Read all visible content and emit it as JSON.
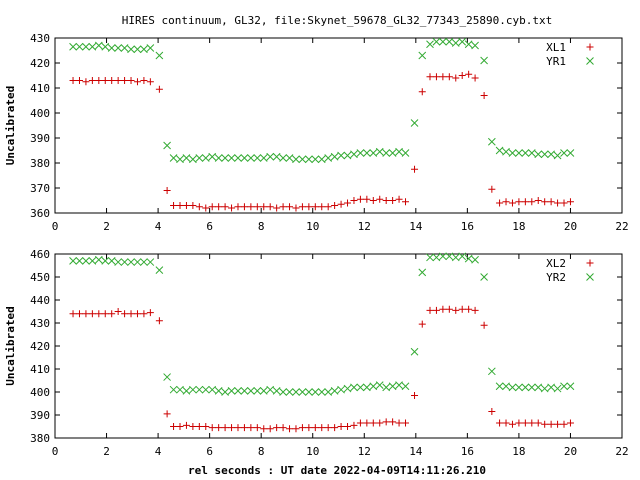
{
  "title": "HIRES continuum, GL32, file:Skynet_59678_GL32_77343_25890.cyb.txt",
  "xlabel": "rel seconds : UT date 2022-04-09T14:11:26.210",
  "colors": {
    "red": "#cc0000",
    "green": "#33aa33"
  },
  "chart_data": [
    {
      "type": "scatter",
      "ylabel": "Uncalibrated",
      "xlim": [
        0,
        22
      ],
      "ylim": [
        360,
        430
      ],
      "xticks": [
        0,
        2,
        4,
        6,
        8,
        10,
        12,
        14,
        16,
        18,
        20,
        22
      ],
      "yticks": [
        360,
        370,
        380,
        390,
        400,
        410,
        420,
        430
      ],
      "legend": "top-right",
      "series": [
        {
          "name": "XL1",
          "marker": "plus",
          "color": "#cc0000",
          "x": [
            0.7,
            0.95,
            1.2,
            1.45,
            1.7,
            1.95,
            2.2,
            2.45,
            2.7,
            2.95,
            3.2,
            3.45,
            3.7,
            4.05,
            4.35,
            4.6,
            4.85,
            5.1,
            5.35,
            5.6,
            5.85,
            6.1,
            6.35,
            6.6,
            6.85,
            7.1,
            7.35,
            7.6,
            7.85,
            8.1,
            8.35,
            8.6,
            8.85,
            9.1,
            9.35,
            9.6,
            9.85,
            10.1,
            10.35,
            10.6,
            10.85,
            11.1,
            11.35,
            11.6,
            11.85,
            12.1,
            12.35,
            12.6,
            12.85,
            13.1,
            13.35,
            13.6,
            13.95,
            14.25,
            14.55,
            14.8,
            15.05,
            15.3,
            15.55,
            15.8,
            16.05,
            16.3,
            16.65,
            16.95,
            17.25,
            17.5,
            17.75,
            18.0,
            18.25,
            18.5,
            18.75,
            19.0,
            19.25,
            19.5,
            19.75,
            20.0
          ],
          "y": [
            413,
            413,
            412.5,
            413,
            413,
            413,
            413,
            413,
            413,
            413,
            412.5,
            413,
            412.5,
            409.5,
            369,
            363,
            363,
            363,
            363,
            362.5,
            362,
            362.5,
            362.5,
            362.5,
            362,
            362.5,
            362.5,
            362.5,
            362.5,
            362.5,
            362.5,
            362,
            362.5,
            362.5,
            362,
            362.5,
            362.5,
            362.5,
            362.5,
            362.5,
            363,
            363.5,
            364,
            365,
            365.5,
            365.5,
            365,
            365.5,
            365,
            365,
            365.5,
            364.5,
            377.5,
            408.5,
            414.5,
            414.5,
            414.5,
            414.5,
            414,
            415,
            415.5,
            414,
            407,
            369.5,
            364,
            364.5,
            364,
            364.5,
            364.5,
            364.5,
            365,
            364.5,
            364.5,
            364,
            364,
            364.5
          ]
        },
        {
          "name": "YR1",
          "marker": "cross",
          "color": "#33aa33",
          "x": [
            0.7,
            0.95,
            1.2,
            1.45,
            1.7,
            1.95,
            2.2,
            2.45,
            2.7,
            2.95,
            3.2,
            3.45,
            3.7,
            4.05,
            4.35,
            4.6,
            4.85,
            5.1,
            5.35,
            5.6,
            5.85,
            6.1,
            6.35,
            6.6,
            6.85,
            7.1,
            7.35,
            7.6,
            7.85,
            8.1,
            8.35,
            8.6,
            8.85,
            9.1,
            9.35,
            9.6,
            9.85,
            10.1,
            10.35,
            10.6,
            10.85,
            11.1,
            11.35,
            11.6,
            11.85,
            12.1,
            12.35,
            12.6,
            12.85,
            13.1,
            13.35,
            13.6,
            13.95,
            14.25,
            14.55,
            14.8,
            15.05,
            15.3,
            15.55,
            15.8,
            16.05,
            16.3,
            16.65,
            16.95,
            17.25,
            17.5,
            17.75,
            18.0,
            18.25,
            18.5,
            18.75,
            19.0,
            19.25,
            19.5,
            19.75,
            20.0
          ],
          "y": [
            426.5,
            426.5,
            426.5,
            426.5,
            427,
            426.5,
            426,
            426,
            426,
            425.5,
            425.5,
            425.5,
            426,
            423,
            387,
            382,
            381.5,
            382,
            381.5,
            382,
            382,
            382.5,
            382,
            382,
            382,
            382,
            382,
            382,
            382,
            382,
            382.5,
            382.5,
            382,
            382,
            381.5,
            381.5,
            381.5,
            381.5,
            381.5,
            382,
            382.5,
            383,
            383,
            383.5,
            384,
            384,
            384,
            384.5,
            384,
            384,
            384.5,
            384,
            396,
            423,
            427.5,
            428.5,
            428.5,
            428.5,
            428,
            428.5,
            427.5,
            427,
            421,
            388.5,
            385,
            384.5,
            384,
            384,
            384,
            384,
            383.5,
            383.5,
            383.5,
            383,
            384,
            384
          ]
        }
      ]
    },
    {
      "type": "scatter",
      "ylabel": "Uncalibrated",
      "xlim": [
        0,
        22
      ],
      "ylim": [
        380,
        460
      ],
      "xticks": [
        0,
        2,
        4,
        6,
        8,
        10,
        12,
        14,
        16,
        18,
        20,
        22
      ],
      "yticks": [
        380,
        390,
        400,
        410,
        420,
        430,
        440,
        450,
        460
      ],
      "legend": "top-right",
      "series": [
        {
          "name": "XL2",
          "marker": "plus",
          "color": "#cc0000",
          "x": [
            0.7,
            0.95,
            1.2,
            1.45,
            1.7,
            1.95,
            2.2,
            2.45,
            2.7,
            2.95,
            3.2,
            3.45,
            3.7,
            4.05,
            4.35,
            4.6,
            4.85,
            5.1,
            5.35,
            5.6,
            5.85,
            6.1,
            6.35,
            6.6,
            6.85,
            7.1,
            7.35,
            7.6,
            7.85,
            8.1,
            8.35,
            8.6,
            8.85,
            9.1,
            9.35,
            9.6,
            9.85,
            10.1,
            10.35,
            10.6,
            10.85,
            11.1,
            11.35,
            11.6,
            11.85,
            12.1,
            12.35,
            12.6,
            12.85,
            13.1,
            13.35,
            13.6,
            13.95,
            14.25,
            14.55,
            14.8,
            15.05,
            15.3,
            15.55,
            15.8,
            16.05,
            16.3,
            16.65,
            16.95,
            17.25,
            17.5,
            17.75,
            18.0,
            18.25,
            18.5,
            18.75,
            19.0,
            19.25,
            19.5,
            19.75,
            20.0
          ],
          "y": [
            434,
            434,
            434,
            434,
            434,
            434,
            434,
            435,
            434,
            434,
            434,
            434,
            434.5,
            431,
            390.5,
            385,
            385,
            385.5,
            385,
            385,
            385,
            384.5,
            384.5,
            384.5,
            384.5,
            384.5,
            384.5,
            384.5,
            384.5,
            384,
            384,
            384.5,
            384.5,
            384,
            384,
            384.5,
            384.5,
            384.5,
            384.5,
            384.5,
            384.5,
            385,
            385,
            385.5,
            386.5,
            386.5,
            386.5,
            386.5,
            387,
            387,
            386.5,
            386.5,
            398.5,
            429.5,
            435.5,
            435.5,
            436,
            436,
            435.5,
            436,
            436,
            435.5,
            429,
            391.5,
            386.5,
            386.5,
            386,
            386.5,
            386.5,
            386.5,
            386.5,
            386,
            386,
            386,
            386,
            386.5
          ]
        },
        {
          "name": "YR2",
          "marker": "cross",
          "color": "#33aa33",
          "x": [
            0.7,
            0.95,
            1.2,
            1.45,
            1.7,
            1.95,
            2.2,
            2.45,
            2.7,
            2.95,
            3.2,
            3.45,
            3.7,
            4.05,
            4.35,
            4.6,
            4.85,
            5.1,
            5.35,
            5.6,
            5.85,
            6.1,
            6.35,
            6.6,
            6.85,
            7.1,
            7.35,
            7.6,
            7.85,
            8.1,
            8.35,
            8.6,
            8.85,
            9.1,
            9.35,
            9.6,
            9.85,
            10.1,
            10.35,
            10.6,
            10.85,
            11.1,
            11.35,
            11.6,
            11.85,
            12.1,
            12.35,
            12.6,
            12.85,
            13.1,
            13.35,
            13.6,
            13.95,
            14.25,
            14.55,
            14.8,
            15.05,
            15.3,
            15.55,
            15.8,
            16.05,
            16.3,
            16.65,
            16.95,
            17.25,
            17.5,
            17.75,
            18.0,
            18.25,
            18.5,
            18.75,
            19.0,
            19.25,
            19.5,
            19.75,
            20.0
          ],
          "y": [
            457,
            457,
            457,
            457,
            457.5,
            457,
            457,
            456.5,
            456.5,
            456.5,
            456.5,
            456.5,
            456.5,
            453,
            406.5,
            401,
            401,
            400.5,
            401,
            401,
            401,
            401,
            400.5,
            400,
            400.5,
            400.5,
            400.5,
            400.5,
            400.5,
            400.5,
            401,
            400.5,
            400,
            400,
            400,
            400,
            400,
            400,
            400,
            400,
            400.5,
            401,
            401.5,
            402,
            402,
            402,
            402.5,
            403,
            402,
            402.5,
            403,
            402.5,
            417.5,
            452,
            458.5,
            458.5,
            459,
            459,
            458.5,
            459,
            458,
            457.5,
            450,
            409,
            402.5,
            402.5,
            402,
            402,
            402,
            402,
            402,
            401.5,
            402,
            401.5,
            402.5,
            402.5
          ]
        }
      ]
    }
  ]
}
